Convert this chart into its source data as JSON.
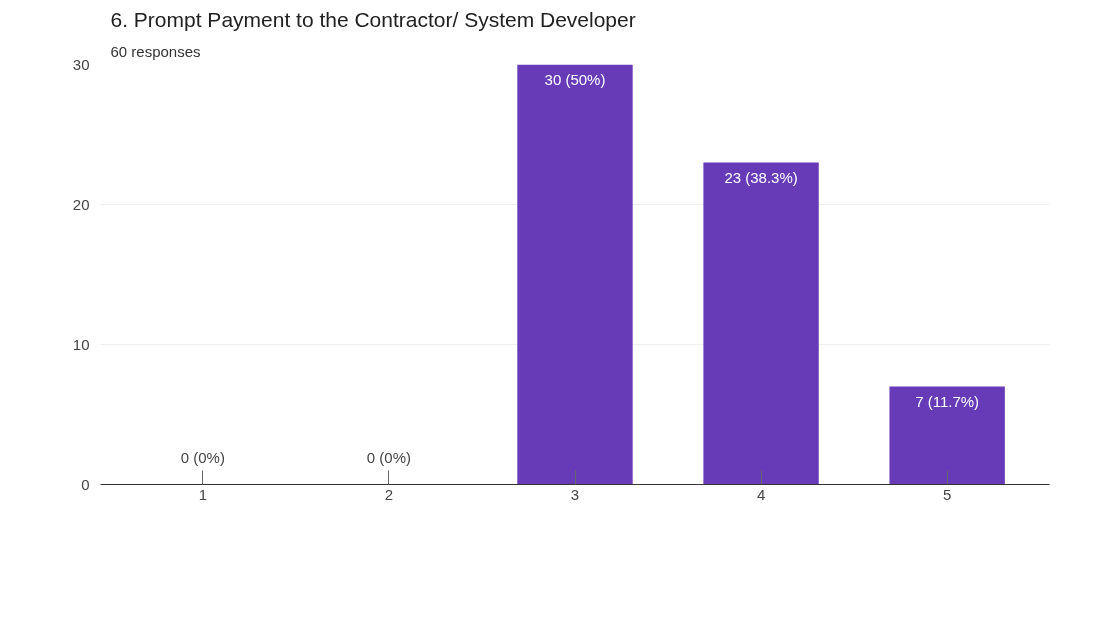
{
  "chart_data": {
    "type": "bar",
    "title": "6. Prompt Payment to the Contractor/ System Developer",
    "subtitle": "60 responses",
    "categories": [
      "1",
      "2",
      "3",
      "4",
      "5"
    ],
    "values": [
      0,
      0,
      30,
      23,
      7
    ],
    "value_labels": [
      "0 (0%)",
      "0 (0%)",
      "30 (50%)",
      "23 (38.3%)",
      "7 (11.7%)"
    ],
    "color": "#673ab7",
    "ylim": [
      0,
      30
    ],
    "yticks": [
      0,
      10,
      20,
      30
    ],
    "grid": "y"
  }
}
